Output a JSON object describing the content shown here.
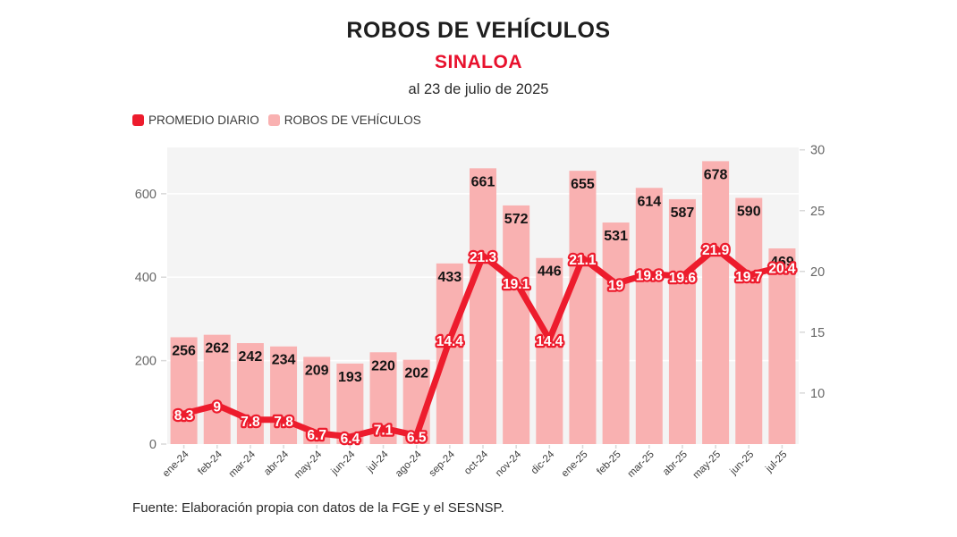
{
  "header": {
    "title": "ROBOS DE VEHÍCULOS",
    "subtitle": "SINALOA",
    "date_note": "al 23 de julio de 2025"
  },
  "legend": [
    {
      "label": "PROMEDIO DIARIO",
      "color": "#ed1c2d",
      "series": "line"
    },
    {
      "label": "ROBOS DE VEHÍCULOS",
      "color": "#f9b1b1",
      "series": "bar"
    }
  ],
  "footer": {
    "source": "Fuente: Elaboración propia con datos de la FGE y el SESNSP."
  },
  "colors": {
    "background": "#ffffff",
    "plot_background": "#f4f4f4",
    "gridline": "#ffffff",
    "bar_fill": "#f9b1b1",
    "line_stroke": "#ed1c2d",
    "subtitle_red": "#e8112d",
    "bar_label": "#141414",
    "point_label_fill": "#ffffff",
    "axis_tick_label": "#666666",
    "x_axis_label": "#3d3d3d",
    "tick_mark": "#d9d9d9"
  },
  "chart_data": {
    "type": "bar",
    "combo": "bar + line (dual axis)",
    "title": "ROBOS DE VEHÍCULOS — SINALOA — al 23 de julio de 2025",
    "categories": [
      "ene-24",
      "feb-24",
      "mar-24",
      "abr-24",
      "may-24",
      "jun-24",
      "jul-24",
      "ago-24",
      "sep-24",
      "oct-24",
      "nov-24",
      "dic-24",
      "ene-25",
      "feb-25",
      "mar-25",
      "abr-25",
      "may-25",
      "jun-25",
      "jul-25"
    ],
    "series": [
      {
        "name": "ROBOS DE VEHÍCULOS",
        "type": "bar",
        "axis": "left",
        "values": [
          256,
          262,
          242,
          234,
          209,
          193,
          220,
          202,
          433,
          661,
          572,
          446,
          655,
          531,
          614,
          587,
          678,
          590,
          469
        ]
      },
      {
        "name": "PROMEDIO DIARIO",
        "type": "line",
        "axis": "right",
        "values": [
          8.3,
          9,
          7.8,
          7.8,
          6.7,
          6.4,
          7.1,
          6.5,
          14.4,
          21.3,
          19.1,
          14.4,
          21.1,
          19,
          19.8,
          19.6,
          21.9,
          19.7,
          20.4
        ]
      }
    ],
    "left_axis": {
      "ticks": [
        0,
        200,
        400,
        600
      ],
      "range": [
        0,
        711
      ]
    },
    "right_axis": {
      "ticks": [
        10,
        15,
        20,
        25,
        30
      ],
      "range": [
        5.8,
        30.2
      ]
    },
    "grid": "horizontal gridlines at left-axis 200/400/600",
    "legend_position": "top-left",
    "data_labels": "bar values inside bar tops (black bold); line values on points (white bold with red outline)"
  }
}
